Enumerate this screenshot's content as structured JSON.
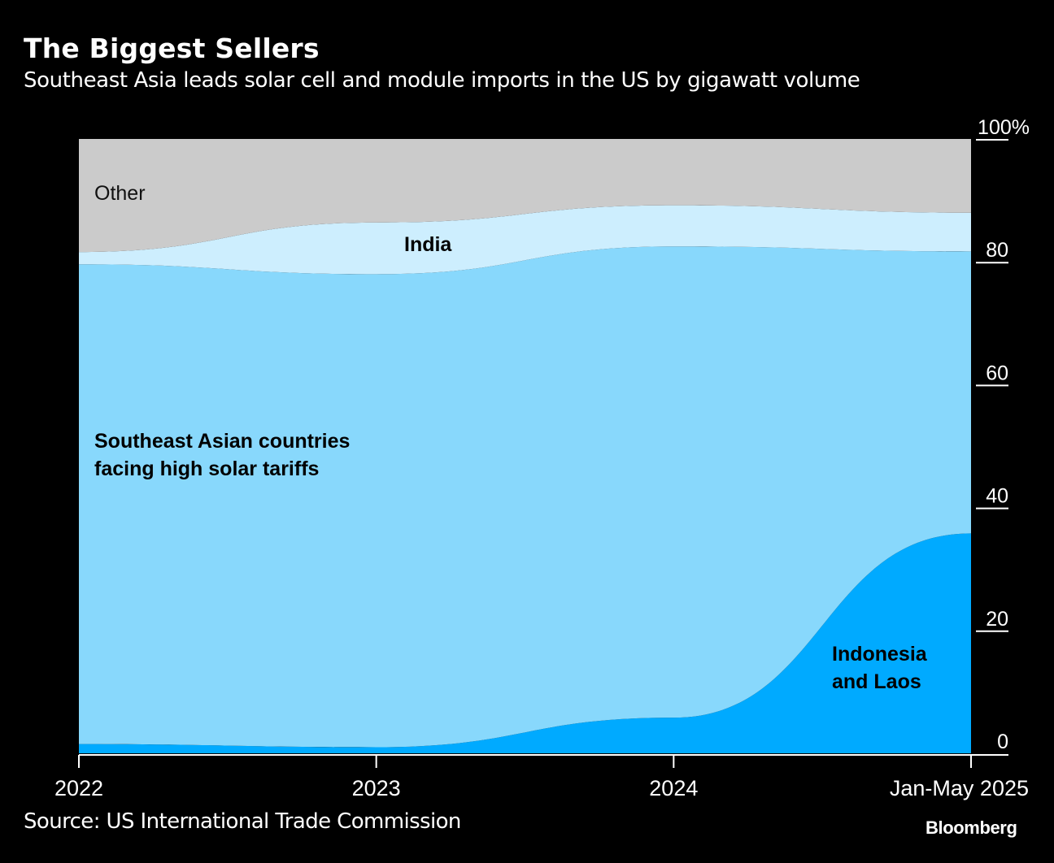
{
  "header": {
    "title": "The Biggest Sellers",
    "subtitle": "Southeast Asia leads solar cell and module imports in the US by gigawatt volume"
  },
  "footer": {
    "source": "Source: US International Trade Commission",
    "brand": "Bloomberg"
  },
  "chart_data": {
    "type": "area",
    "stacked": true,
    "normalized": true,
    "title": "The Biggest Sellers",
    "subtitle": "Southeast Asia leads solar cell and module imports in the US by gigawatt volume",
    "xlabel": "",
    "ylabel": "",
    "x": [
      "2022",
      "2023",
      "2024",
      "Jan-May 2025"
    ],
    "ylim": [
      0,
      100
    ],
    "y_ticks": [
      0,
      20,
      40,
      60,
      80,
      100
    ],
    "y_tick_labels": [
      "0",
      "20",
      "40",
      "60",
      "80",
      "100%"
    ],
    "y_axis_side": "right",
    "grid": false,
    "legend": "inline-labels",
    "series": [
      {
        "name": "Indonesia and Laos",
        "label": "Indonesia and Laos",
        "color": "#00aaff",
        "values": [
          1.5,
          1.0,
          5.8,
          35.8
        ]
      },
      {
        "name": "Southeast Asian countries facing high solar tariffs",
        "label": "Southeast Asian countries facing high solar tariffs",
        "color": "#88d8fc",
        "values": [
          78.1,
          77.0,
          76.7,
          45.9
        ]
      },
      {
        "name": "India",
        "label": "India",
        "color": "#cdeefe",
        "values": [
          2.0,
          8.4,
          6.7,
          6.3
        ]
      },
      {
        "name": "Other",
        "label": "Other",
        "color": "#cbcbcb",
        "values": [
          18.4,
          13.6,
          10.8,
          12.0
        ]
      }
    ],
    "annotations": [
      {
        "text": "Other",
        "series": "Other"
      },
      {
        "text": "India",
        "series": "India"
      },
      {
        "text": "Southeast Asian countries",
        "series": "Southeast Asian countries facing high solar tariffs"
      },
      {
        "text": "facing high solar tariffs",
        "series": "Southeast Asian countries facing high solar tariffs"
      },
      {
        "text": "Indonesia",
        "series": "Indonesia and Laos"
      },
      {
        "text": "and Laos",
        "series": "Indonesia and Laos"
      }
    ]
  }
}
